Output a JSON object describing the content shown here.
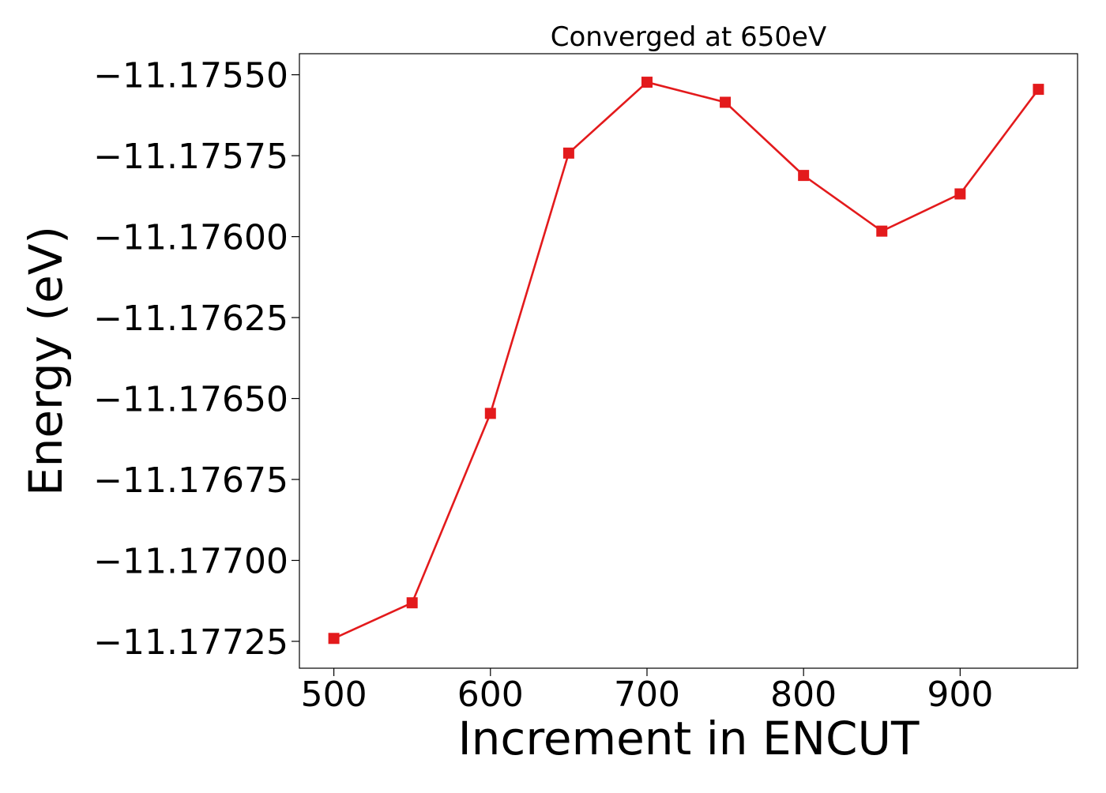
{
  "chart_data": {
    "type": "line",
    "title": "Converged at 650eV",
    "xlabel": "Increment in ENCUT",
    "ylabel": "Energy (eV)",
    "xlim": [
      478,
      975
    ],
    "ylim": [
      -11.177333,
      -11.175435
    ],
    "x_ticks": [
      500,
      600,
      700,
      800,
      900
    ],
    "x_tick_labels": [
      "500",
      "600",
      "700",
      "800",
      "900"
    ],
    "y_ticks": [
      -11.1755,
      -11.17575,
      -11.176,
      -11.17625,
      -11.1765,
      -11.17675,
      -11.177,
      -11.17725
    ],
    "y_tick_labels": [
      "−11.17550",
      "−11.17575",
      "−11.17600",
      "−11.17625",
      "−11.17650",
      "−11.17675",
      "−11.17700",
      "−11.17725"
    ],
    "grid": false,
    "series": [
      {
        "color": "#e31a1c",
        "marker": "square",
        "x": [
          500,
          550,
          600,
          650,
          700,
          750,
          800,
          850,
          900,
          950
        ],
        "y": [
          -11.177241,
          -11.177131,
          -11.176546,
          -11.175742,
          -11.175523,
          -11.175585,
          -11.175811,
          -11.175983,
          -11.175868,
          -11.175545
        ]
      }
    ]
  }
}
